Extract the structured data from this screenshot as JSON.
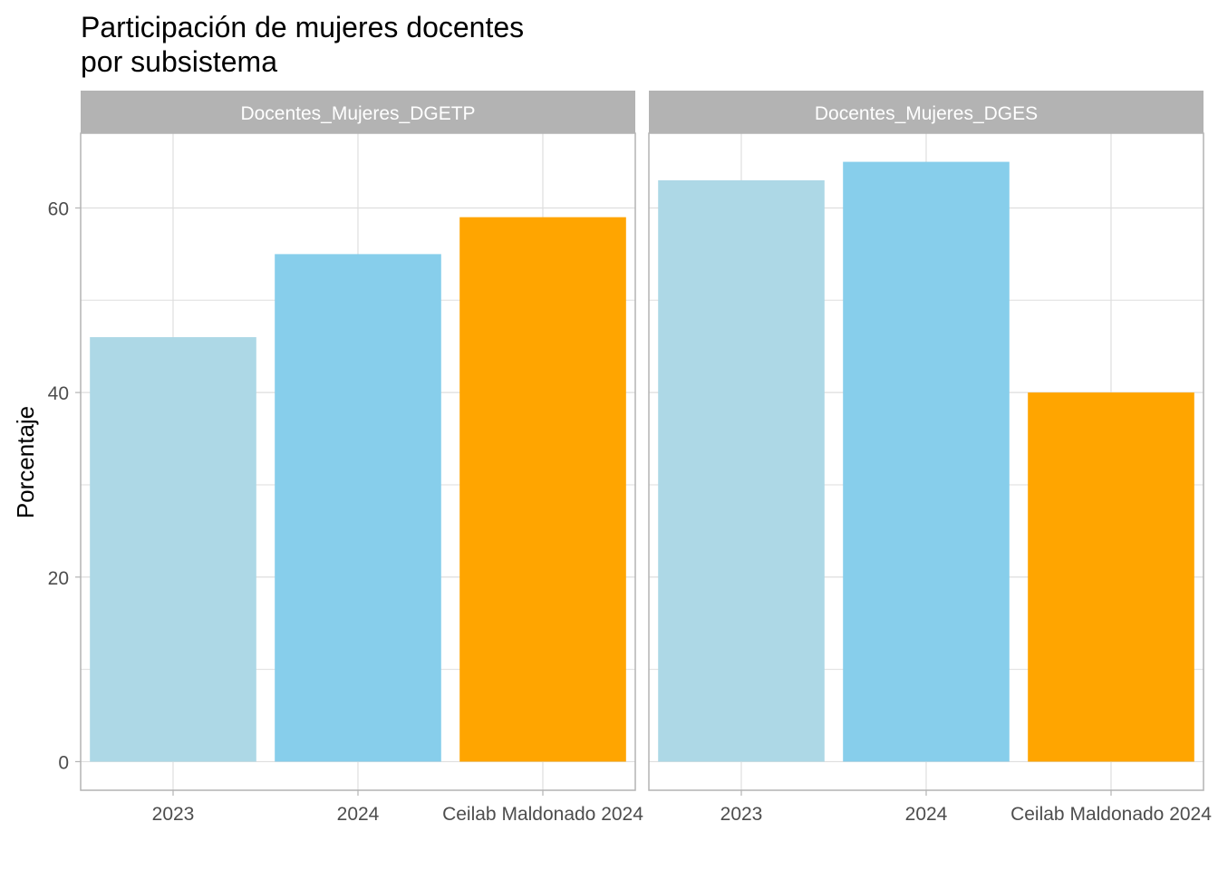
{
  "chart_data": {
    "type": "bar",
    "title": "Participación de mujeres docentes\npor subsistema",
    "title_lines": [
      "Participación de mujeres docentes",
      "por subsistema"
    ],
    "xlabel": "",
    "ylabel": "Porcentaje",
    "ylim": [
      -3.1,
      68.1
    ],
    "yticks": [
      0,
      20,
      40,
      60
    ],
    "ytick_labels": [
      "0",
      "20",
      "40",
      "60"
    ],
    "grid": true,
    "categories": [
      "2023",
      "2024",
      "Ceilab Maldonado 2024"
    ],
    "category_colors": [
      "#add8e6",
      "#87ceeb",
      "#ffa500"
    ],
    "facets": [
      {
        "name": "Docentes_Mujeres_DGETP",
        "values": [
          46,
          55,
          59
        ]
      },
      {
        "name": "Docentes_Mujeres_DGES",
        "values": [
          63,
          65,
          40
        ]
      }
    ],
    "legend": "none"
  },
  "colors": {
    "strip_bg": "#b3b3b3",
    "panel_border": "#b3b3b3",
    "grid": "#dedede",
    "tick_text": "#4d4d4d"
  }
}
